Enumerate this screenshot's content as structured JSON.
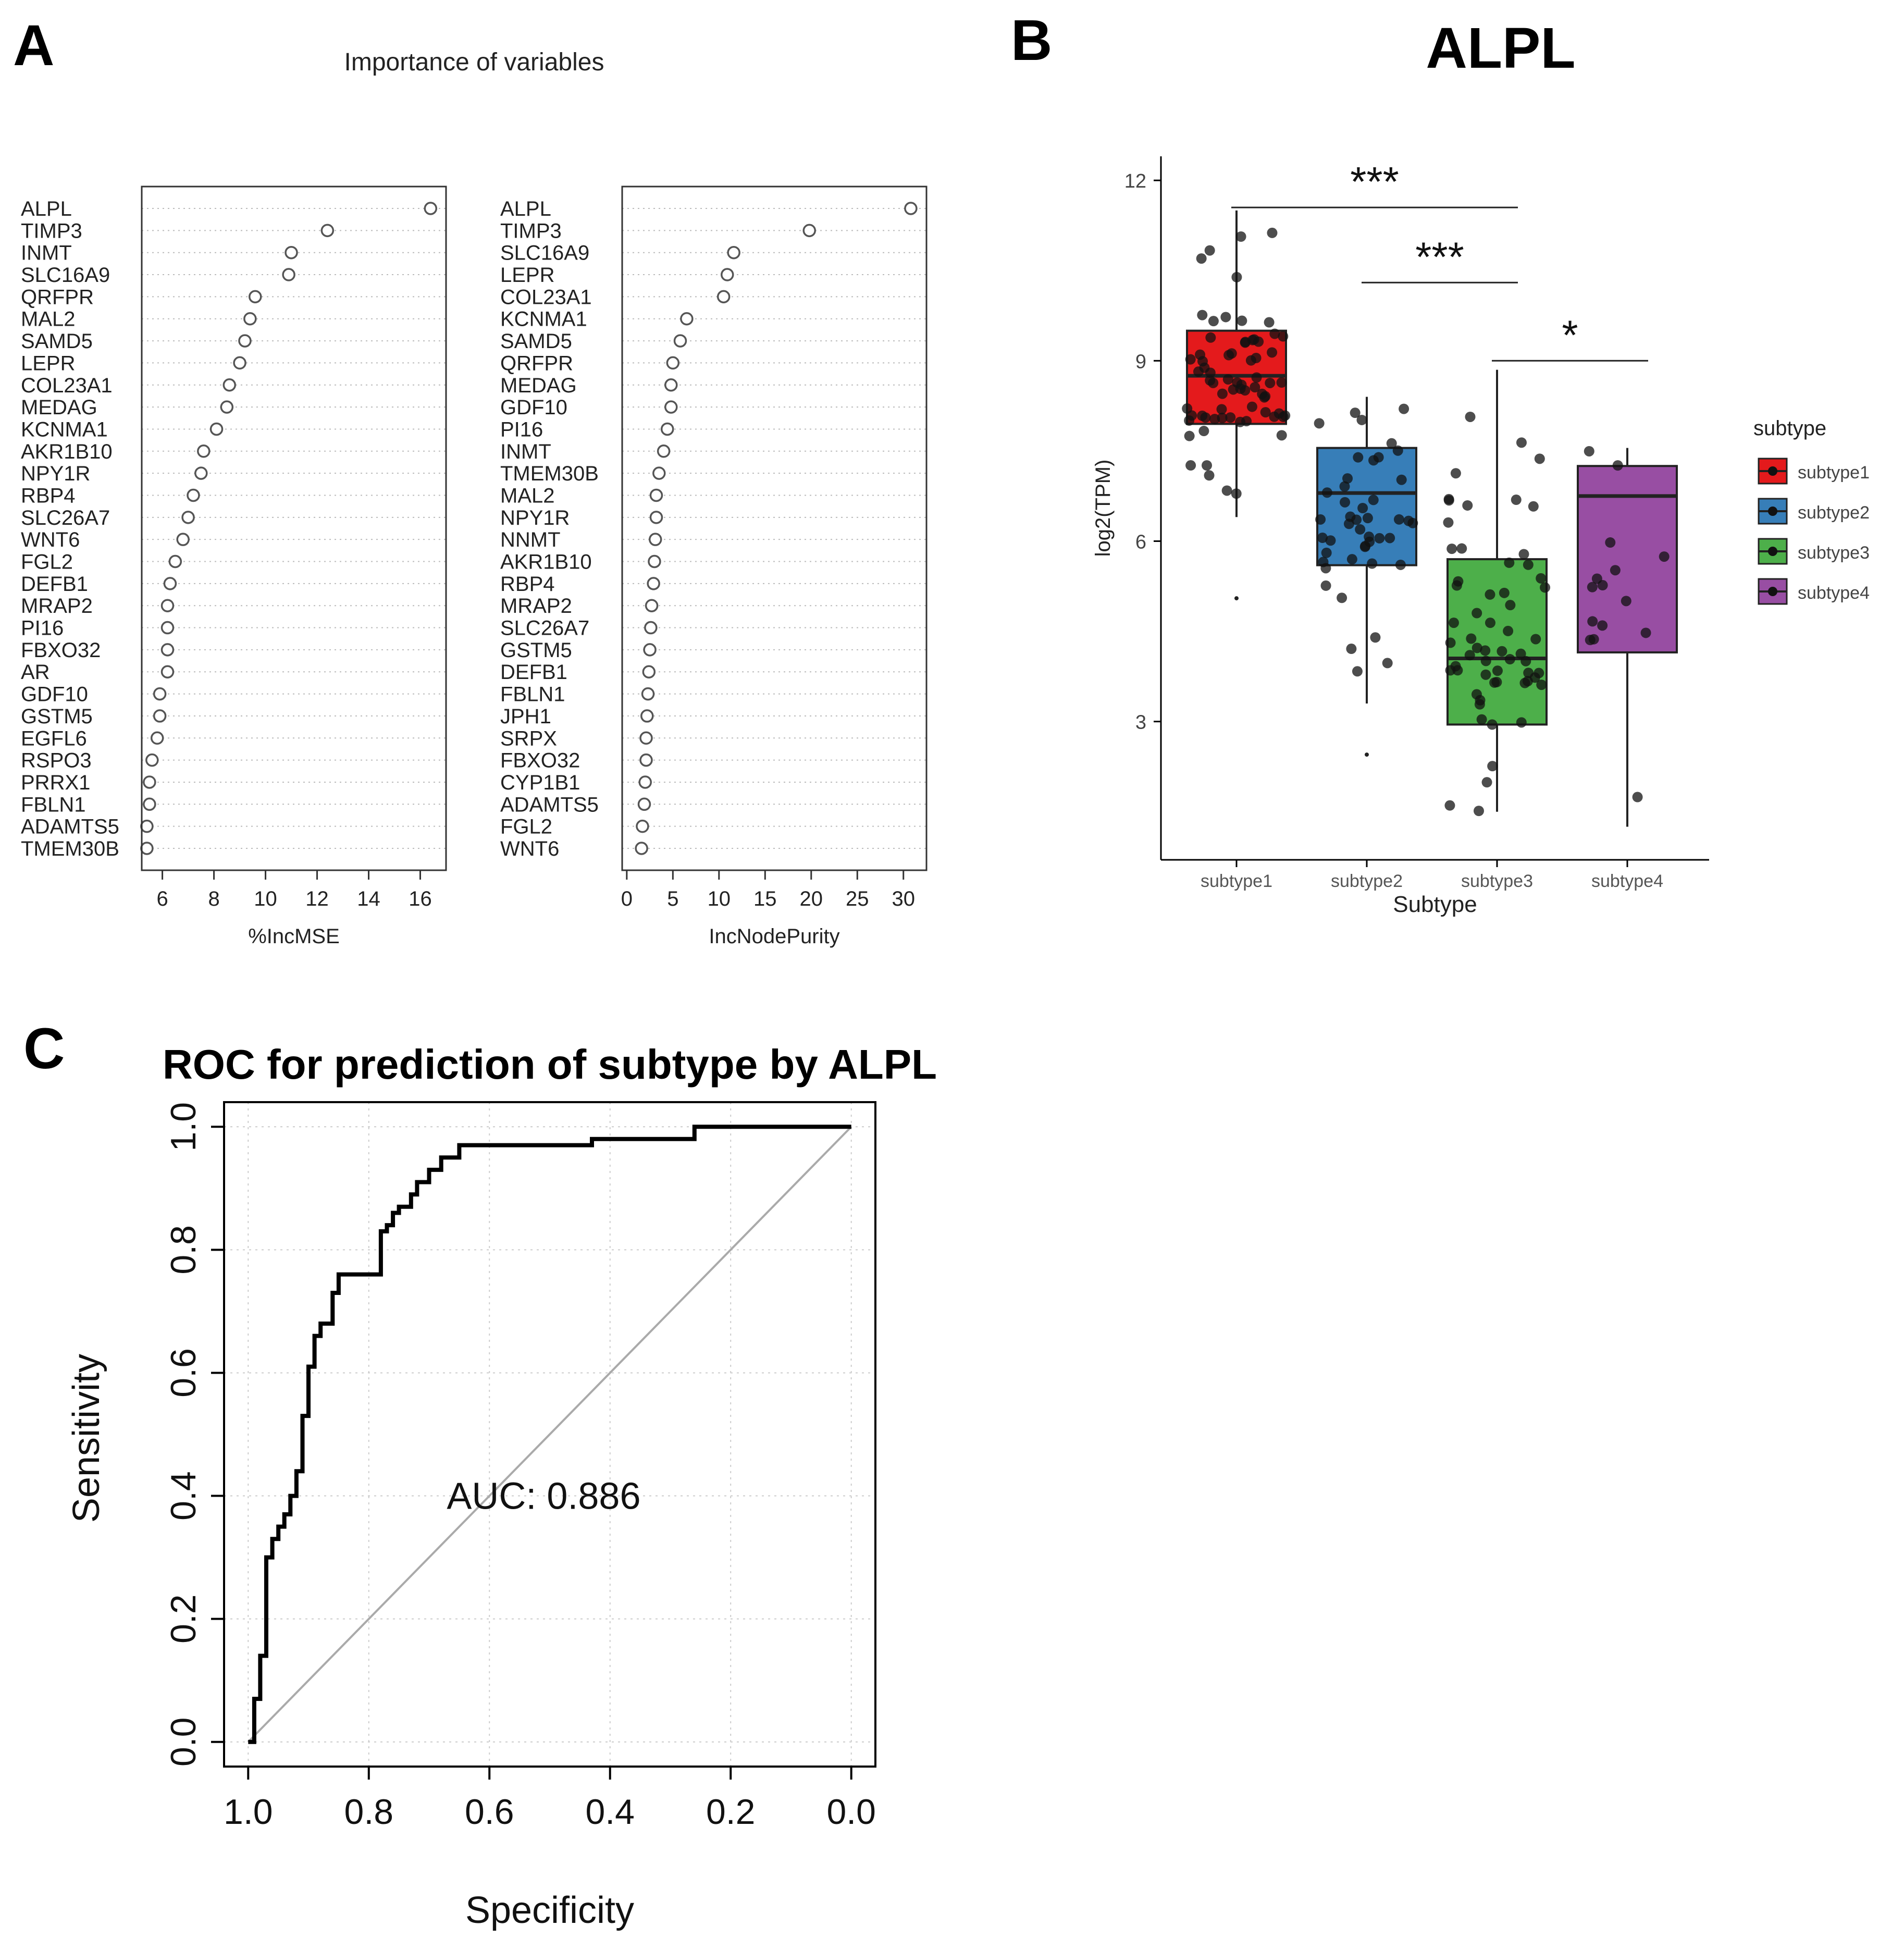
{
  "panels": {
    "a": "A",
    "b": "B",
    "c": "C"
  },
  "chart_data": [
    {
      "type": "scatter",
      "subtype": "dotchart",
      "panel": "A",
      "title": "Importance of variables",
      "xlabel": "%IncMSE",
      "ylabel": "",
      "xlim": [
        5.2,
        17.0
      ],
      "xticks": [
        6,
        8,
        10,
        12,
        14,
        16
      ],
      "xtick_labels": [
        "6",
        "8",
        "10",
        "12",
        "14",
        "16"
      ],
      "grid": true,
      "categories": [
        "ALPL",
        "TIMP3",
        "INMT",
        "SLC16A9",
        "QRFPR",
        "MAL2",
        "SAMD5",
        "LEPR",
        "COL23A1",
        "MEDAG",
        "KCNMA1",
        "AKR1B10",
        "NPY1R",
        "RBP4",
        "SLC26A7",
        "WNT6",
        "FGL2",
        "DEFB1",
        "MRAP2",
        "PI16",
        "FBXO32",
        "AR",
        "GDF10",
        "GSTM5",
        "EGFL6",
        "RSPO3",
        "PRRX1",
        "FBLN1",
        "ADAMTS5",
        "TMEM30B"
      ],
      "values": [
        16.4,
        12.4,
        11.0,
        10.9,
        9.6,
        9.4,
        9.2,
        9.0,
        8.6,
        8.5,
        8.1,
        7.6,
        7.5,
        7.2,
        7.0,
        6.8,
        6.5,
        6.3,
        6.2,
        6.2,
        6.2,
        6.2,
        5.9,
        5.9,
        5.8,
        5.6,
        5.5,
        5.5,
        5.4,
        5.4
      ]
    },
    {
      "type": "scatter",
      "subtype": "dotchart",
      "panel": "A",
      "title": "",
      "xlabel": "IncNodePurity",
      "ylabel": "",
      "xlim": [
        -0.5,
        32.5
      ],
      "xticks": [
        0,
        5,
        10,
        15,
        20,
        25,
        30
      ],
      "xtick_labels": [
        "0",
        "5",
        "10",
        "15",
        "20",
        "25",
        "30"
      ],
      "grid": true,
      "categories": [
        "ALPL",
        "TIMP3",
        "SLC16A9",
        "LEPR",
        "COL23A1",
        "KCNMA1",
        "SAMD5",
        "QRFPR",
        "MEDAG",
        "GDF10",
        "PI16",
        "INMT",
        "TMEM30B",
        "MAL2",
        "NPY1R",
        "NNMT",
        "AKR1B10",
        "RBP4",
        "MRAP2",
        "SLC26A7",
        "GSTM5",
        "DEFB1",
        "FBLN1",
        "JPH1",
        "SRPX",
        "FBXO32",
        "CYP1B1",
        "ADAMTS5",
        "FGL2",
        "WNT6"
      ],
      "values": [
        30.8,
        19.8,
        11.6,
        10.9,
        10.5,
        6.5,
        5.8,
        5.0,
        4.8,
        4.8,
        4.4,
        4.0,
        3.5,
        3.2,
        3.2,
        3.1,
        3.0,
        2.9,
        2.7,
        2.6,
        2.5,
        2.4,
        2.3,
        2.2,
        2.1,
        2.1,
        2.0,
        1.9,
        1.7,
        1.6
      ]
    },
    {
      "type": "box",
      "panel": "B",
      "title": "ALPL",
      "xlabel": "Subtype",
      "ylabel": "log2(TPM)",
      "ylim": [
        0.7,
        12.4
      ],
      "yticks": [
        3,
        6,
        9,
        12
      ],
      "ytick_labels": [
        "3",
        "6",
        "9",
        "12"
      ],
      "legend_title": "subtype",
      "legend_position": "right",
      "categories": [
        "subtype1",
        "subtype2",
        "subtype3",
        "subtype4"
      ],
      "series": [
        {
          "name": "subtype1",
          "color": "#e41a1c",
          "box": {
            "min": 6.4,
            "q1": 7.95,
            "median": 8.75,
            "q3": 9.5,
            "max": 11.5
          },
          "outliers": [
            5.05
          ]
        },
        {
          "name": "subtype2",
          "color": "#377eb8",
          "box": {
            "min": 3.3,
            "q1": 5.6,
            "median": 6.8,
            "q3": 7.55,
            "max": 8.4
          },
          "outliers": [
            2.45
          ]
        },
        {
          "name": "subtype3",
          "color": "#4daf4a",
          "box": {
            "min": 1.5,
            "q1": 2.95,
            "median": 4.05,
            "q3": 5.7,
            "max": 8.85
          },
          "outliers": []
        },
        {
          "name": "subtype4",
          "color": "#984ea3",
          "box": {
            "min": 1.25,
            "q1": 4.15,
            "median": 6.75,
            "q3": 7.25,
            "max": 7.55
          },
          "outliers": []
        }
      ],
      "significance": [
        {
          "from": "subtype1",
          "to": "subtype3",
          "y": 11.55,
          "label": "***"
        },
        {
          "from": "subtype2",
          "to": "subtype3",
          "y": 10.3,
          "label": "***"
        },
        {
          "from": "subtype3",
          "to": "subtype4",
          "y": 9.0,
          "label": "*"
        }
      ]
    },
    {
      "type": "line",
      "panel": "C",
      "title": "ROC for prediction of subtype by ALPL",
      "xlabel": "Specificity",
      "ylabel": "Sensitivity",
      "xlim": [
        1.04,
        -0.04
      ],
      "ylim": [
        -0.04,
        1.04
      ],
      "xticks": [
        1.0,
        0.8,
        0.6,
        0.4,
        0.2,
        0.0
      ],
      "xtick_labels": [
        "1.0",
        "0.8",
        "0.6",
        "0.4",
        "0.2",
        "0.0"
      ],
      "yticks": [
        0.0,
        0.2,
        0.4,
        0.6,
        0.8,
        1.0
      ],
      "ytick_labels": [
        "0.0",
        "0.2",
        "0.4",
        "0.6",
        "0.8",
        "1.0"
      ],
      "grid": true,
      "annotation": "AUC: 0.886",
      "auc": 0.886,
      "series": [
        {
          "name": "ROC",
          "x": [
            1.0,
            0.99,
            0.99,
            0.98,
            0.98,
            0.97,
            0.97,
            0.96,
            0.96,
            0.95,
            0.95,
            0.94,
            0.94,
            0.93,
            0.93,
            0.92,
            0.92,
            0.91,
            0.91,
            0.9,
            0.9,
            0.89,
            0.89,
            0.88,
            0.88,
            0.86,
            0.86,
            0.85,
            0.85,
            0.78,
            0.78,
            0.77,
            0.77,
            0.76,
            0.76,
            0.75,
            0.75,
            0.73,
            0.73,
            0.72,
            0.72,
            0.7,
            0.7,
            0.68,
            0.68,
            0.65,
            0.65,
            0.43,
            0.43,
            0.26,
            0.26,
            0.0
          ],
          "y": [
            0.0,
            0.0,
            0.07,
            0.07,
            0.14,
            0.14,
            0.3,
            0.3,
            0.33,
            0.33,
            0.35,
            0.35,
            0.37,
            0.37,
            0.4,
            0.4,
            0.44,
            0.44,
            0.53,
            0.53,
            0.61,
            0.61,
            0.66,
            0.66,
            0.68,
            0.68,
            0.73,
            0.73,
            0.76,
            0.76,
            0.83,
            0.83,
            0.84,
            0.84,
            0.86,
            0.86,
            0.87,
            0.87,
            0.89,
            0.89,
            0.91,
            0.91,
            0.93,
            0.93,
            0.95,
            0.95,
            0.97,
            0.97,
            0.98,
            0.98,
            1.0,
            1.0
          ]
        },
        {
          "name": "chance",
          "x": [
            1.0,
            0.0
          ],
          "y": [
            0.0,
            1.0
          ]
        }
      ]
    }
  ]
}
